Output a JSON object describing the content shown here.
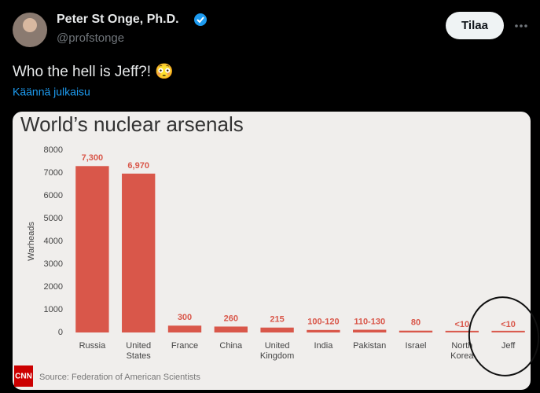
{
  "tweet": {
    "name": "Peter St Onge, Ph.D.",
    "handle": "@profstonge",
    "button": "Tilaa",
    "text": "Who the hell is Jeff?! 😳",
    "translate": "Käännä julkaisu"
  },
  "chart_data": {
    "type": "bar",
    "title": "World’s nuclear arsenals",
    "y_label": "Warheads",
    "categories": [
      "Russia",
      "United States",
      "France",
      "China",
      "United Kingdom",
      "India",
      "Pakistan",
      "Israel",
      "North Korea",
      "Jeff"
    ],
    "values": [
      7300,
      6970,
      300,
      260,
      215,
      110,
      120,
      80,
      5,
      5
    ],
    "value_labels": [
      "7,300",
      "6,970",
      "300",
      "260",
      "215",
      "100-120",
      "110-130",
      "80",
      "<10",
      "<10"
    ],
    "color": "#d9574a",
    "ylim": [
      0,
      8000
    ],
    "yticks": [
      0,
      1000,
      2000,
      3000,
      4000,
      5000,
      6000,
      7000,
      8000
    ],
    "grid": false,
    "source": "Source: Federation of American Scientists",
    "logo": "CNN"
  }
}
